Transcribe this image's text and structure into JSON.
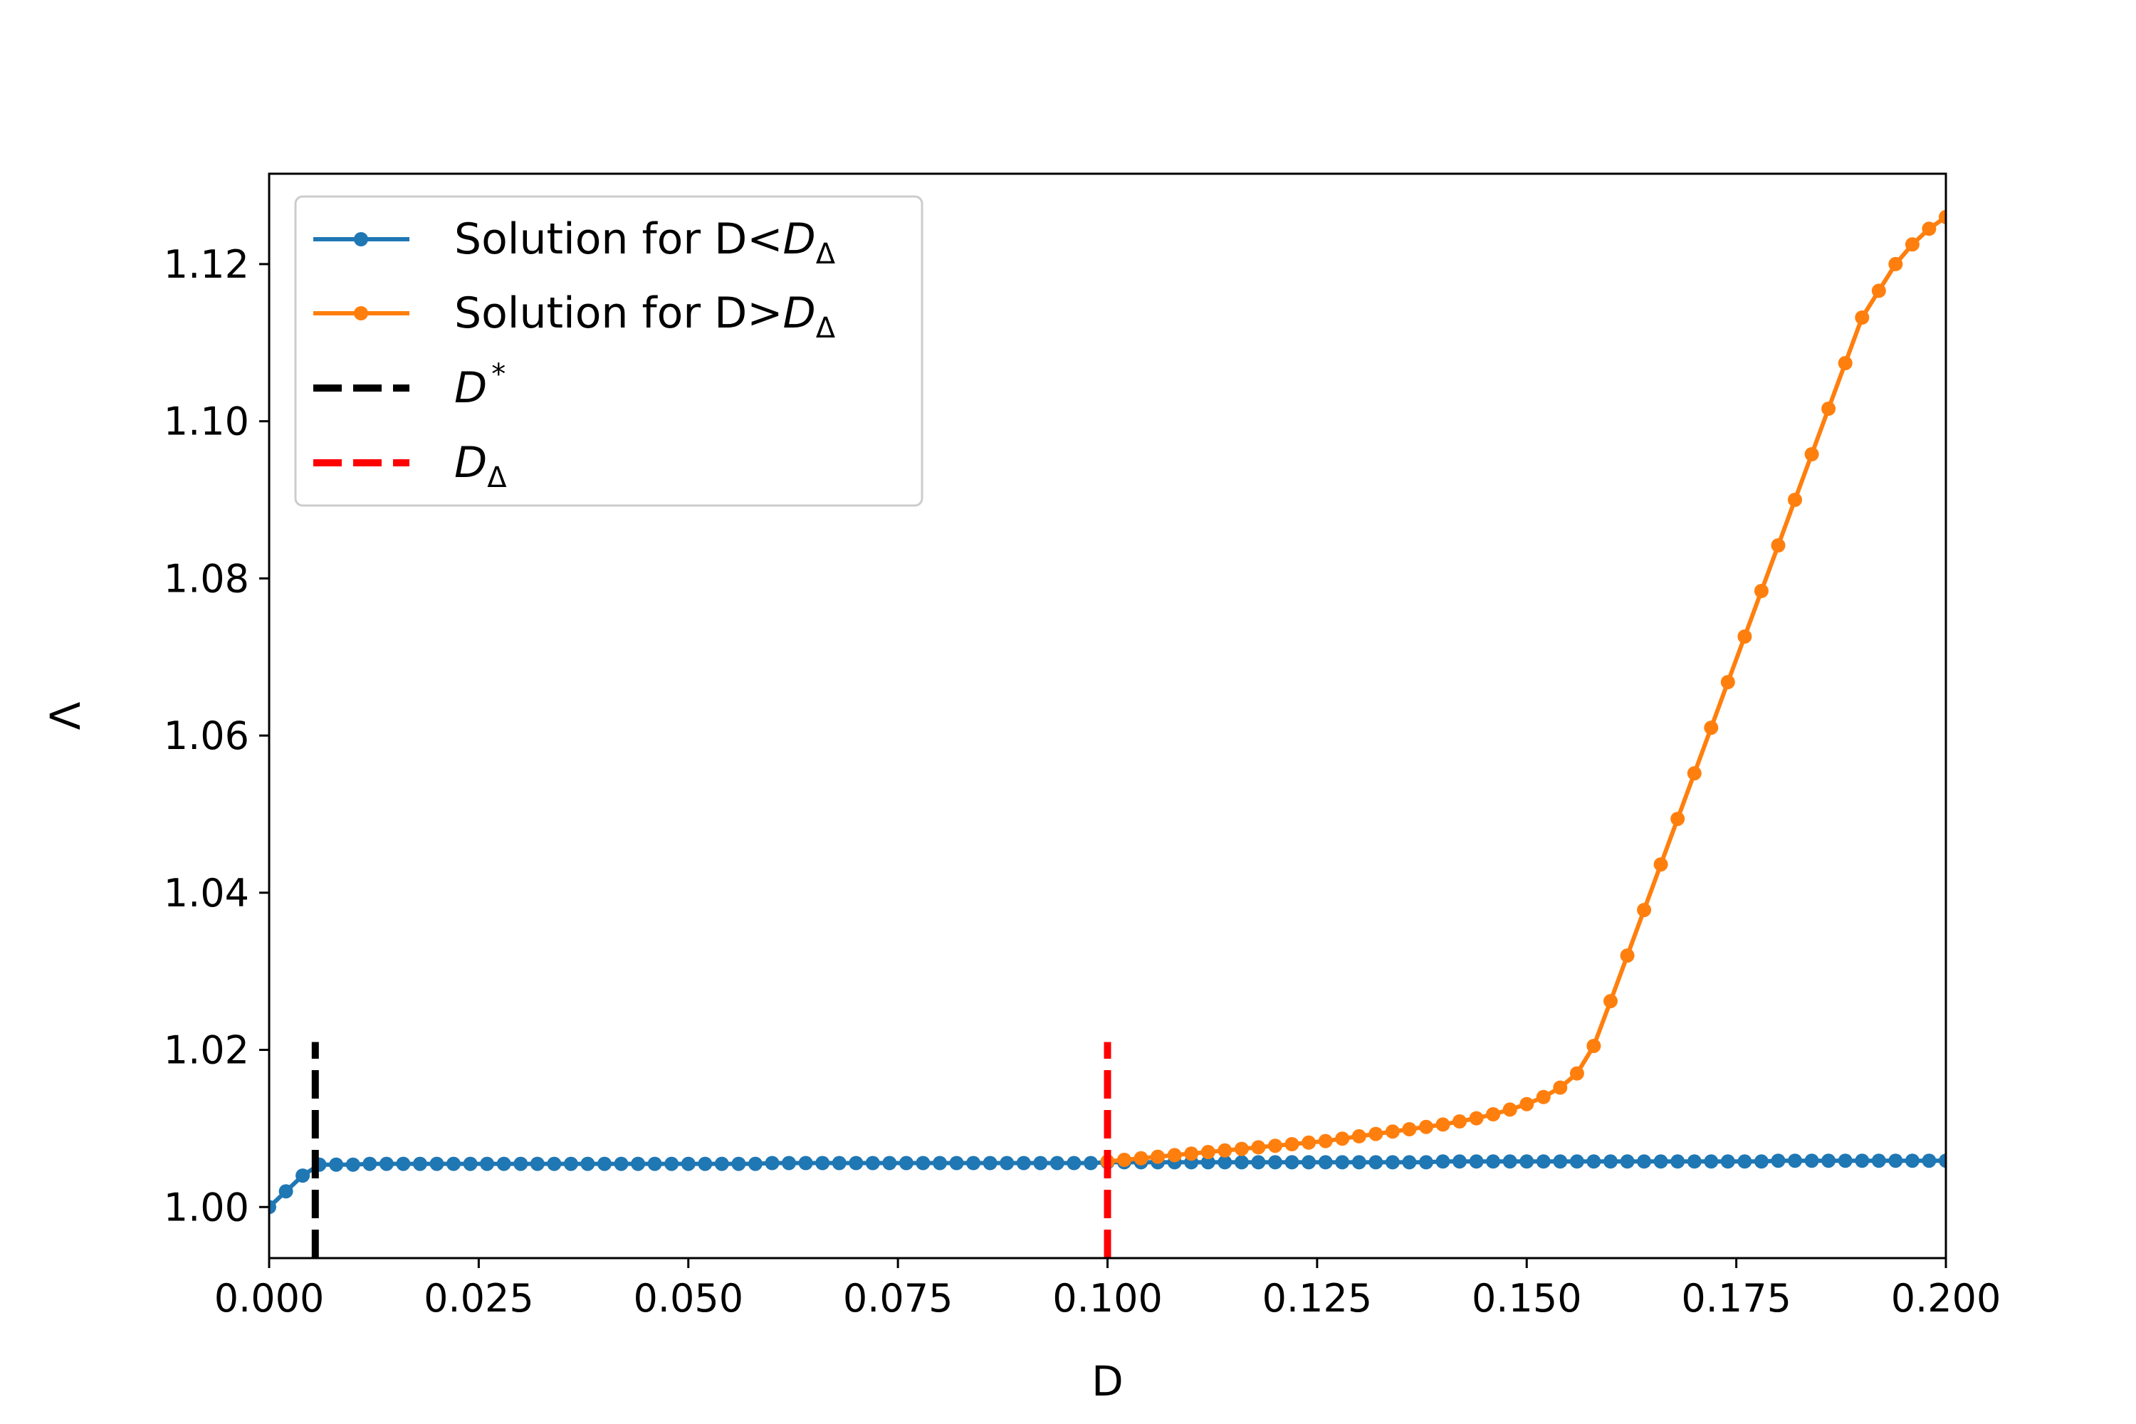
{
  "chart_data": {
    "type": "line",
    "title": "",
    "xlabel": "D",
    "ylabel": "Λ",
    "xlim": [
      0.0,
      0.2
    ],
    "ylim": [
      0.9935,
      1.1315
    ],
    "xticks": [
      "0.000",
      "0.025",
      "0.050",
      "0.075",
      "0.100",
      "0.125",
      "0.150",
      "0.175",
      "0.200"
    ],
    "xtick_values": [
      0.0,
      0.025,
      0.05,
      0.075,
      0.1,
      0.125,
      0.15,
      0.175,
      0.2
    ],
    "yticks": [
      "1.00",
      "1.02",
      "1.04",
      "1.06",
      "1.08",
      "1.10",
      "1.12"
    ],
    "ytick_values": [
      1.0,
      1.02,
      1.04,
      1.06,
      1.08,
      1.1,
      1.12
    ],
    "grid": false,
    "legend_position": "top-left",
    "series": [
      {
        "name_main": "Solution for D<",
        "name_symbol": "D",
        "name_sub": "Δ",
        "color": "#1f77b4",
        "style": "solid-dots",
        "x": [
          0.0,
          0.002,
          0.004,
          0.006,
          0.008,
          0.01,
          0.012,
          0.014,
          0.016,
          0.018,
          0.02,
          0.022,
          0.024,
          0.026,
          0.028,
          0.03,
          0.032,
          0.034,
          0.036,
          0.038,
          0.04,
          0.042,
          0.044,
          0.046,
          0.048,
          0.05,
          0.052,
          0.054,
          0.056,
          0.058,
          0.06,
          0.062,
          0.064,
          0.066,
          0.068,
          0.07,
          0.072,
          0.074,
          0.076,
          0.078,
          0.08,
          0.082,
          0.084,
          0.086,
          0.088,
          0.09,
          0.092,
          0.094,
          0.096,
          0.098,
          0.1,
          0.102,
          0.104,
          0.106,
          0.108,
          0.11,
          0.112,
          0.114,
          0.116,
          0.118,
          0.12,
          0.122,
          0.124,
          0.126,
          0.128,
          0.13,
          0.132,
          0.134,
          0.136,
          0.138,
          0.14,
          0.142,
          0.144,
          0.146,
          0.148,
          0.15,
          0.152,
          0.154,
          0.156,
          0.158,
          0.16,
          0.162,
          0.164,
          0.166,
          0.168,
          0.17,
          0.172,
          0.174,
          0.176,
          0.178,
          0.18,
          0.182,
          0.184,
          0.186,
          0.188,
          0.19,
          0.192,
          0.194,
          0.196,
          0.198,
          0.2
        ],
        "y": [
          1.0,
          1.002,
          1.004,
          1.0054,
          1.0054,
          1.0054,
          1.0055,
          1.0055,
          1.0055,
          1.0055,
          1.0055,
          1.0055,
          1.0055,
          1.0055,
          1.0055,
          1.0055,
          1.0055,
          1.0055,
          1.0055,
          1.0055,
          1.0055,
          1.0055,
          1.0055,
          1.0055,
          1.0055,
          1.0055,
          1.0055,
          1.0055,
          1.0055,
          1.0055,
          1.0056,
          1.0056,
          1.0056,
          1.0056,
          1.0056,
          1.0056,
          1.0056,
          1.0056,
          1.0056,
          1.0056,
          1.0056,
          1.0056,
          1.0056,
          1.0056,
          1.0056,
          1.0056,
          1.0056,
          1.0056,
          1.0056,
          1.0056,
          1.0057,
          1.0057,
          1.0057,
          1.0057,
          1.0057,
          1.0057,
          1.0057,
          1.0057,
          1.0057,
          1.0057,
          1.0057,
          1.0057,
          1.0057,
          1.0057,
          1.0057,
          1.0057,
          1.0057,
          1.0057,
          1.0057,
          1.0057,
          1.0058,
          1.0058,
          1.0058,
          1.0058,
          1.0058,
          1.0058,
          1.0058,
          1.0058,
          1.0058,
          1.0058,
          1.0058,
          1.0058,
          1.0058,
          1.0058,
          1.0058,
          1.0058,
          1.0058,
          1.0058,
          1.0058,
          1.0058,
          1.0059,
          1.0059,
          1.0059,
          1.0059,
          1.0059,
          1.0059,
          1.0059,
          1.0059,
          1.0059,
          1.0059,
          1.0059
        ]
      },
      {
        "name_main": "Solution for D>",
        "name_symbol": "D",
        "name_sub": "Δ",
        "color": "#ff7f0e",
        "style": "solid-dots",
        "x": [
          0.1,
          0.102,
          0.104,
          0.106,
          0.108,
          0.11,
          0.112,
          0.114,
          0.116,
          0.118,
          0.12,
          0.122,
          0.124,
          0.126,
          0.128,
          0.13,
          0.132,
          0.134,
          0.136,
          0.138,
          0.14,
          0.142,
          0.144,
          0.146,
          0.148,
          0.15,
          0.152,
          0.154,
          0.156,
          0.158,
          0.16,
          0.162,
          0.164,
          0.166,
          0.168,
          0.17,
          0.172,
          0.174,
          0.176,
          0.178,
          0.18,
          0.182,
          0.184,
          0.186,
          0.188,
          0.19,
          0.192,
          0.194,
          0.196,
          0.198,
          0.2
        ],
        "y": [
          1.0058,
          1.006,
          1.0062,
          1.0064,
          1.0066,
          1.0068,
          1.007,
          1.0072,
          1.0074,
          1.0076,
          1.0078,
          1.008,
          1.0082,
          1.0084,
          1.0087,
          1.009,
          1.0093,
          1.0096,
          1.0099,
          1.0102,
          1.0105,
          1.0109,
          1.0113,
          1.0118,
          1.0124,
          1.0131,
          1.014,
          1.0152,
          1.017,
          1.0205,
          1.0262,
          1.032,
          1.0378,
          1.0436,
          1.0494,
          1.0552,
          1.061,
          1.0668,
          1.0726,
          1.0784,
          1.0842,
          1.09,
          1.0958,
          1.1016,
          1.1074,
          1.1132,
          1.1166,
          1.12,
          1.1225,
          1.1245,
          1.126
        ]
      },
      {
        "name_main": "",
        "name_symbol": "D",
        "name_sup": "*",
        "color": "#000000",
        "style": "dashed",
        "x": [
          0.0055,
          0.0055
        ],
        "y": [
          0.9935,
          1.021
        ]
      },
      {
        "name_main": "",
        "name_symbol": "D",
        "name_sub": "Δ",
        "color": "#ff0000",
        "style": "dashed",
        "x": [
          0.1,
          0.1
        ],
        "y": [
          0.9935,
          1.021
        ]
      }
    ]
  }
}
